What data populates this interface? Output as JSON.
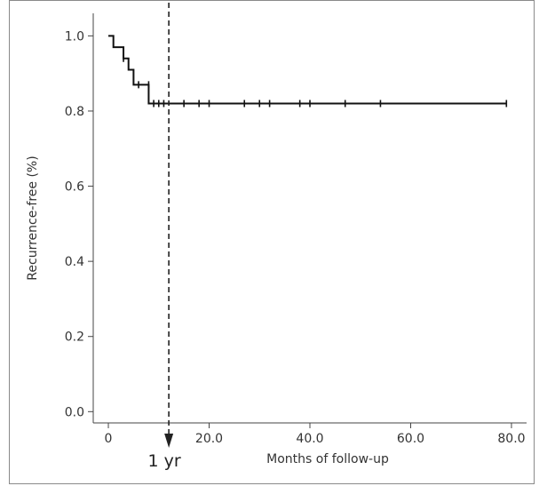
{
  "chart_data": {
    "type": "line",
    "title": "",
    "xlabel": "Months of follow-up",
    "ylabel": "Recurrence-free (%)",
    "xlim": [
      -3,
      83
    ],
    "ylim": [
      -0.03,
      1.06
    ],
    "x_ticks": [
      0,
      20,
      40,
      60,
      80
    ],
    "x_tick_labels": [
      "0",
      "20.0",
      "40.0",
      "60.0",
      "80.0"
    ],
    "y_ticks": [
      0,
      0.2,
      0.4,
      0.6,
      0.8,
      1.0
    ],
    "y_tick_labels": [
      "0.0",
      "0.2",
      "0.4",
      "0.6",
      "0.8",
      "1.0"
    ],
    "grid": false,
    "legend": "none",
    "series": [
      {
        "steps": [
          [
            0,
            1.0
          ],
          [
            1,
            0.97
          ],
          [
            3,
            0.94
          ],
          [
            4,
            0.91
          ],
          [
            5,
            0.87
          ],
          [
            8,
            0.82
          ],
          [
            79,
            0.82
          ]
        ],
        "censored": [
          [
            3,
            0.94
          ],
          [
            6,
            0.87
          ],
          [
            8,
            0.87
          ],
          [
            9,
            0.82
          ],
          [
            10,
            0.82
          ],
          [
            11,
            0.82
          ],
          [
            15,
            0.82
          ],
          [
            18,
            0.82
          ],
          [
            20,
            0.82
          ],
          [
            27,
            0.82
          ],
          [
            30,
            0.82
          ],
          [
            32,
            0.82
          ],
          [
            38,
            0.82
          ],
          [
            40,
            0.82
          ],
          [
            47,
            0.82
          ],
          [
            54,
            0.82
          ],
          [
            79,
            0.82
          ]
        ]
      }
    ],
    "annotations": [
      {
        "text": "1 yr",
        "x": 12
      }
    ]
  },
  "colors": {
    "line": "#111111",
    "axis": "#444444",
    "text": "#333333",
    "frame": "#8a8a8a"
  }
}
